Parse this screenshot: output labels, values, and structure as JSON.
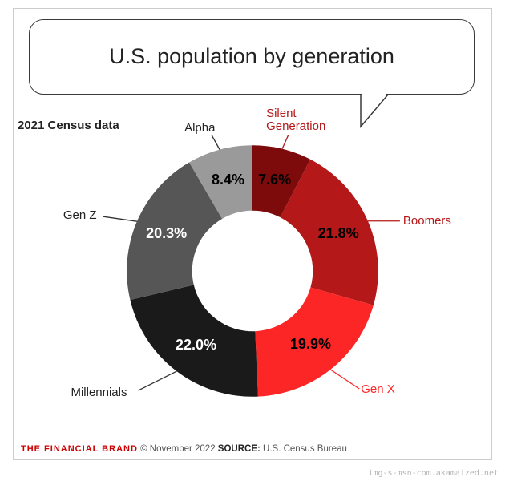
{
  "title": "U.S. population by generation",
  "subtitle": "2021 Census data",
  "chart": {
    "type": "donut",
    "inner_radius_ratio": 0.48,
    "background_color": "#ffffff",
    "slices": [
      {
        "label": "Silent Generation",
        "value": 7.6,
        "pct_text": "7.6%",
        "color": "#7d0b0b",
        "pct_color": "#000000"
      },
      {
        "label": "Boomers",
        "value": 21.8,
        "pct_text": "21.8%",
        "color": "#b41818",
        "pct_color": "#000000"
      },
      {
        "label": "Gen X",
        "value": 19.9,
        "pct_text": "19.9%",
        "color": "#fd2626",
        "pct_color": "#000000"
      },
      {
        "label": "Millennials",
        "value": 22.0,
        "pct_text": "22.0%",
        "color": "#1a1a1a",
        "pct_color": "#ffffff"
      },
      {
        "label": "Gen Z",
        "value": 20.3,
        "pct_text": "20.3%",
        "color": "#565656",
        "pct_color": "#ffffff"
      },
      {
        "label": "Alpha",
        "value": 8.4,
        "pct_text": "8.4%",
        "color": "#9a9a9a",
        "pct_color": "#000000"
      }
    ],
    "leader_line_color_red": "#b41818",
    "leader_line_color_dark": "#333333",
    "title_fontsize": 27,
    "pct_fontsize": 18,
    "label_fontsize": 15
  },
  "footer": {
    "brand": "THE FINANCIAL BRAND",
    "copyright": " © November 2022 ",
    "source_label": "SOURCE:",
    "source_value": " U.S. Census Bureau"
  },
  "watermark": "img-s-msn-com.akamaized.net"
}
